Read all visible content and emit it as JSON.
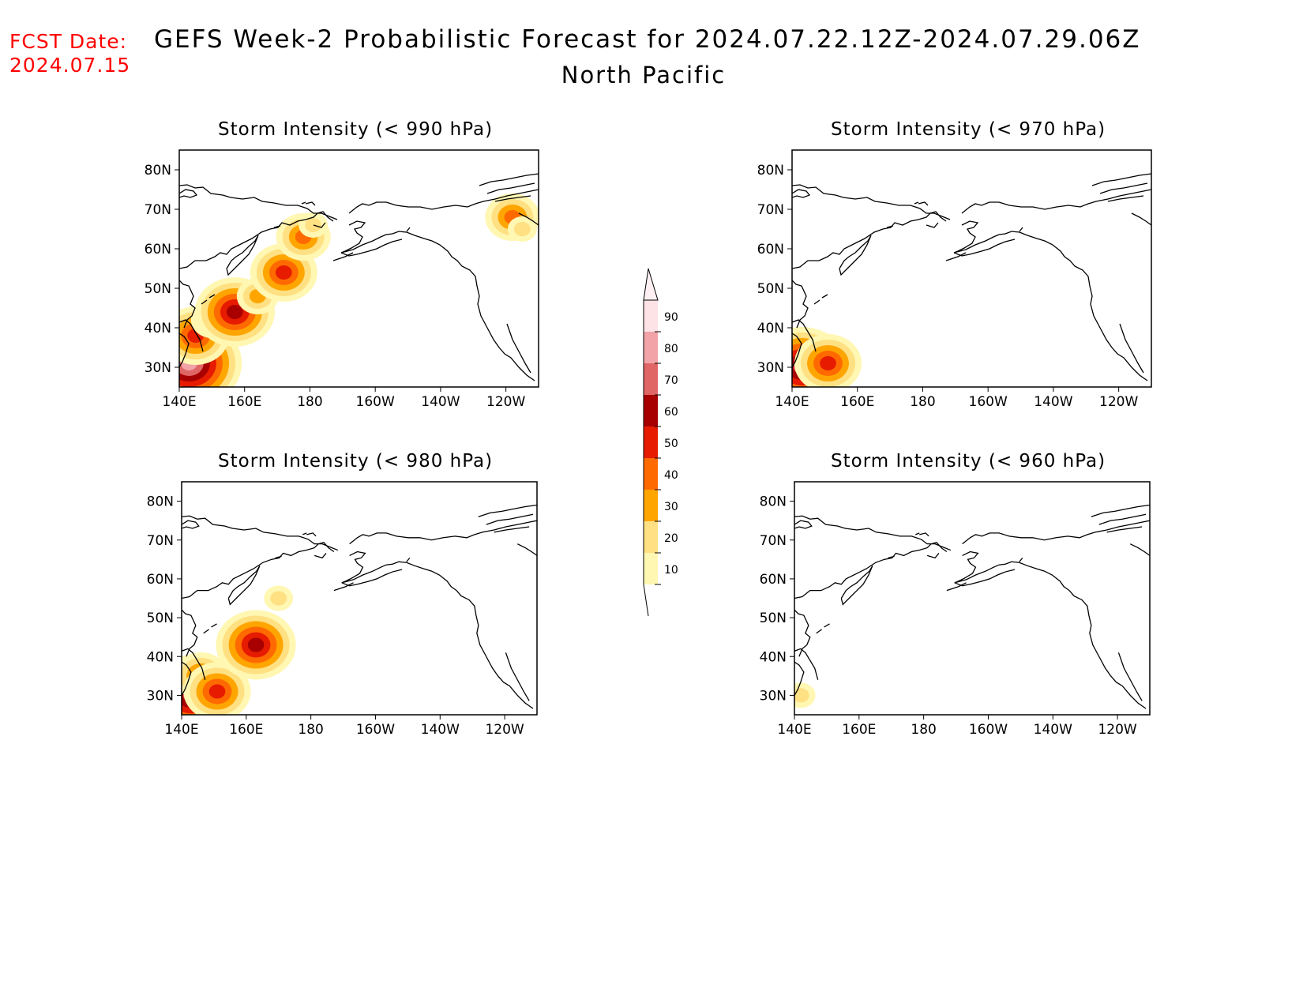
{
  "header": {
    "fcst_label": "FCST Date:",
    "fcst_date": "2024.07.15",
    "title": "GEFS Week-2 Probabilistic Forecast for 2024.07.22.12Z-2024.07.29.06Z",
    "subtitle": "North Pacific"
  },
  "axes": {
    "x_ticks": [
      "140E",
      "160E",
      "180",
      "160W",
      "140W",
      "120W"
    ],
    "y_ticks": [
      "80N",
      "70N",
      "60N",
      "50N",
      "40N",
      "30N"
    ]
  },
  "panels": [
    {
      "id": "p990",
      "title": "Storm Intensity (< 990 hPa)"
    },
    {
      "id": "p970",
      "title": "Storm Intensity (< 970 hPa)"
    },
    {
      "id": "p980",
      "title": "Storm Intensity (< 980 hPa)"
    },
    {
      "id": "p960",
      "title": "Storm Intensity (< 960 hPa)"
    }
  ],
  "colorbar": {
    "labels": [
      "90",
      "80",
      "70",
      "60",
      "50",
      "40",
      "30",
      "20",
      "10"
    ],
    "colors": [
      "#fde2e6",
      "#f2a3a8",
      "#e06666",
      "#a80000",
      "#e61b00",
      "#ff6a00",
      "#ffa500",
      "#ffe082",
      "#fff7b2"
    ]
  },
  "chart_data": {
    "type": "heatmap",
    "units": "probability (%)",
    "levels": [
      10,
      20,
      30,
      40,
      50,
      60,
      70,
      80,
      90
    ],
    "x_range": [
      "140E",
      "110W"
    ],
    "y_range": [
      "25N",
      "85N"
    ],
    "panels": [
      {
        "threshold": "< 990 hPa",
        "blobs": [
          {
            "lon": 143,
            "lat": 31,
            "level": 80
          },
          {
            "lon": 145,
            "lat": 38,
            "level": 50
          },
          {
            "lon": 150,
            "lat": 42,
            "level": 30
          },
          {
            "lon": 157,
            "lat": 44,
            "level": 60
          },
          {
            "lon": 164,
            "lat": 48,
            "level": 30
          },
          {
            "lon": 172,
            "lat": 54,
            "level": 50
          },
          {
            "lon": 178,
            "lat": 63,
            "level": 40
          },
          {
            "lon": 181,
            "lat": 66,
            "level": 20
          },
          {
            "lon": 242,
            "lat": 68,
            "level": 40
          },
          {
            "lon": 245,
            "lat": 65,
            "level": 20
          }
        ]
      },
      {
        "threshold": "< 970 hPa",
        "blobs": [
          {
            "lon": 143,
            "lat": 30,
            "level": 70
          },
          {
            "lon": 151,
            "lat": 31,
            "level": 50
          }
        ]
      },
      {
        "threshold": "< 980 hPa",
        "blobs": [
          {
            "lon": 143,
            "lat": 30,
            "level": 70
          },
          {
            "lon": 146,
            "lat": 35,
            "level": 40
          },
          {
            "lon": 151,
            "lat": 31,
            "level": 50
          },
          {
            "lon": 163,
            "lat": 43,
            "level": 60
          },
          {
            "lon": 170,
            "lat": 55,
            "level": 20
          }
        ]
      },
      {
        "threshold": "< 960 hPa",
        "blobs": [
          {
            "lon": 142,
            "lat": 30,
            "level": 20
          }
        ]
      }
    ]
  }
}
